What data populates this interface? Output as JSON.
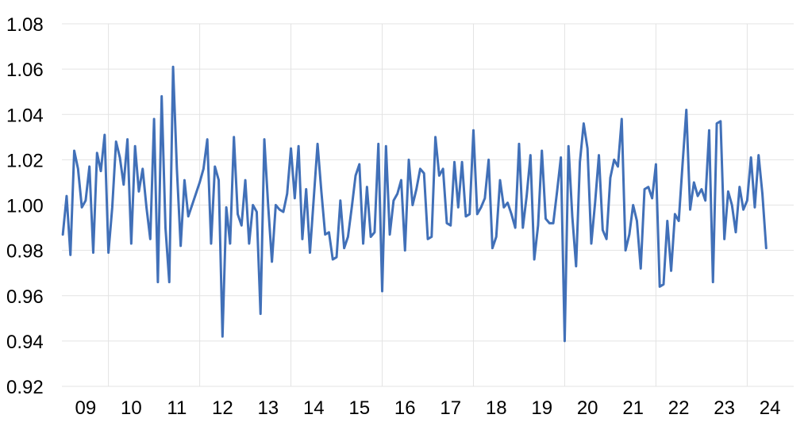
{
  "chart_data": {
    "type": "line",
    "title": "",
    "xlabel": "",
    "ylabel": "",
    "grid": {
      "horizontal": true,
      "vertical": true
    },
    "legend": "none",
    "x_range": [
      2008.48,
      2024.52
    ],
    "ylim": [
      0.92,
      1.08
    ],
    "y_ticks": [
      {
        "value": 0.92,
        "label": "0.92"
      },
      {
        "value": 0.94,
        "label": "0.94"
      },
      {
        "value": 0.96,
        "label": "0.96"
      },
      {
        "value": 0.98,
        "label": "0.98"
      },
      {
        "value": 1.0,
        "label": "1.00"
      },
      {
        "value": 1.02,
        "label": "1.02"
      },
      {
        "value": 1.04,
        "label": "1.04"
      },
      {
        "value": 1.06,
        "label": "1.06"
      },
      {
        "value": 1.08,
        "label": "1.08"
      }
    ],
    "x_ticks": [
      {
        "value": 2009,
        "label": "09"
      },
      {
        "value": 2010,
        "label": "10"
      },
      {
        "value": 2011,
        "label": "11"
      },
      {
        "value": 2012,
        "label": "12"
      },
      {
        "value": 2013,
        "label": "13"
      },
      {
        "value": 2014,
        "label": "14"
      },
      {
        "value": 2015,
        "label": "15"
      },
      {
        "value": 2016,
        "label": "16"
      },
      {
        "value": 2017,
        "label": "17"
      },
      {
        "value": 2018,
        "label": "18"
      },
      {
        "value": 2019,
        "label": "19"
      },
      {
        "value": 2020,
        "label": "20"
      },
      {
        "value": 2021,
        "label": "21"
      },
      {
        "value": 2022,
        "label": "22"
      },
      {
        "value": 2023,
        "label": "23"
      },
      {
        "value": 2024,
        "label": "24"
      }
    ],
    "vertical_gridlines_at": [
      2009.5,
      2011.5,
      2013.5,
      2015.5,
      2017.5,
      2019.5,
      2021.5,
      2023.5
    ],
    "series": [
      {
        "color": "#4170b8",
        "start": "2008-07",
        "step": "month",
        "values": [
          0.987,
          1.004,
          0.978,
          1.024,
          1.016,
          0.999,
          1.002,
          1.017,
          0.979,
          1.023,
          1.015,
          1.031,
          0.979,
          0.999,
          1.028,
          1.021,
          1.009,
          1.029,
          0.983,
          1.026,
          1.006,
          1.016,
          0.999,
          0.985,
          1.038,
          0.966,
          1.048,
          0.99,
          0.966,
          1.061,
          1.016,
          0.982,
          1.011,
          0.995,
          1.0,
          1.005,
          1.01,
          1.016,
          1.029,
          0.983,
          1.017,
          1.011,
          0.942,
          0.999,
          0.983,
          1.03,
          0.996,
          0.991,
          1.011,
          0.983,
          1.0,
          0.997,
          0.952,
          1.029,
          1.0,
          0.975,
          1.0,
          0.998,
          0.997,
          1.005,
          1.025,
          1.003,
          1.026,
          0.985,
          1.007,
          0.979,
          1.003,
          1.027,
          1.006,
          0.987,
          0.988,
          0.976,
          0.977,
          1.002,
          0.981,
          0.986,
          0.999,
          1.013,
          1.018,
          0.983,
          1.008,
          0.986,
          0.988,
          1.027,
          0.962,
          1.026,
          0.987,
          1.002,
          1.005,
          1.011,
          0.98,
          1.02,
          1.0,
          1.007,
          1.016,
          1.014,
          0.985,
          0.986,
          1.03,
          1.013,
          1.016,
          0.992,
          0.991,
          1.019,
          0.999,
          1.019,
          0.995,
          0.996,
          1.033,
          0.996,
          0.999,
          1.003,
          1.02,
          0.981,
          0.986,
          1.011,
          0.999,
          1.001,
          0.996,
          0.99,
          1.027,
          0.99,
          1.004,
          1.022,
          0.976,
          0.991,
          1.024,
          0.994,
          0.992,
          0.992,
          1.006,
          1.021,
          0.94,
          1.026,
          0.995,
          0.973,
          1.019,
          1.036,
          1.025,
          0.983,
          1.001,
          1.022,
          0.989,
          0.985,
          1.012,
          1.02,
          1.017,
          1.038,
          0.98,
          0.987,
          1.0,
          0.993,
          0.972,
          1.007,
          1.008,
          1.003,
          1.018,
          0.964,
          0.965,
          0.993,
          0.971,
          0.996,
          0.993,
          1.018,
          1.042,
          0.998,
          1.01,
          1.004,
          1.007,
          1.002,
          1.033,
          0.966,
          1.036,
          1.037,
          0.985,
          1.006,
          1.0,
          0.988,
          1.008,
          0.998,
          1.002,
          1.021,
          0.999,
          1.022,
          1.005,
          0.981
        ]
      }
    ]
  }
}
